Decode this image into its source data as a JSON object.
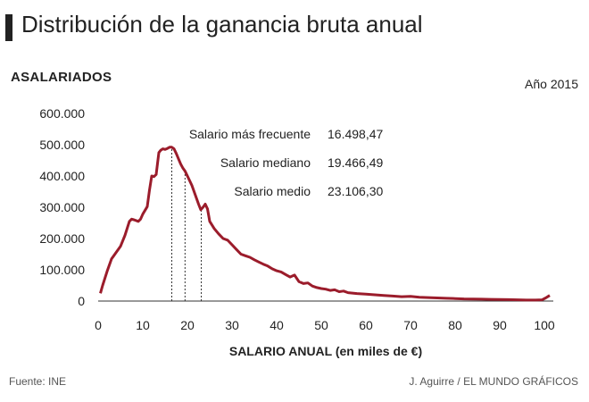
{
  "header": {
    "title": "Distribución de la ganancia bruta anual",
    "year": "Año 2015"
  },
  "footer": {
    "source": "Fuente: INE",
    "credit": "J. Aguirre / EL MUNDO GRÁFICOS"
  },
  "colors": {
    "line": "#9b1c2b",
    "axis": "#333333"
  },
  "chart_data": {
    "type": "line",
    "title": "Distribución de la ganancia bruta anual",
    "xlabel": "SALARIO ANUAL (en miles de €)",
    "ylabel": "ASALARIADOS",
    "xlim": [
      0,
      102
    ],
    "ylim": [
      0,
      600000
    ],
    "x_ticks": [
      0,
      10,
      20,
      30,
      40,
      50,
      60,
      70,
      80,
      90,
      100
    ],
    "y_ticks": [
      0,
      100000,
      200000,
      300000,
      400000,
      500000,
      600000
    ],
    "y_tick_labels": [
      "0",
      "100.000",
      "200.000",
      "300.000",
      "400.000",
      "500.000",
      "600.000"
    ],
    "grid": false,
    "series": [
      {
        "x": [
          0.5,
          1,
          2,
          3,
          4,
          5,
          6,
          7,
          7.5,
          8,
          9,
          9.5,
          10,
          11,
          11.5,
          12,
          12.5,
          13,
          13.3,
          13.6,
          14,
          14.5,
          15,
          15.5,
          16,
          16.5,
          17,
          17.5,
          18,
          18.5,
          19,
          19.5,
          20,
          21,
          22,
          22.5,
          23,
          23.5,
          24,
          24.5,
          25,
          26,
          27,
          28,
          29,
          30,
          31,
          32,
          33,
          34,
          35,
          36,
          37,
          38,
          39,
          40,
          41,
          42,
          43,
          44,
          45,
          46,
          47,
          48,
          49,
          50,
          51,
          52,
          53,
          54,
          55,
          56,
          58,
          60,
          62,
          64,
          66,
          68,
          70,
          72,
          74,
          76,
          78,
          80,
          82,
          84,
          86,
          88,
          90,
          92,
          94,
          96,
          98,
          99.5,
          100.3,
          101.2
        ],
        "y": [
          25000,
          50000,
          95000,
          135000,
          155000,
          175000,
          210000,
          255000,
          262000,
          260000,
          255000,
          262000,
          278000,
          302000,
          355000,
          400000,
          398000,
          405000,
          440000,
          475000,
          482000,
          487000,
          485000,
          488000,
          492000,
          492000,
          487000,
          472000,
          455000,
          438000,
          425000,
          415000,
          400000,
          370000,
          330000,
          310000,
          292000,
          300000,
          310000,
          295000,
          255000,
          232000,
          215000,
          200000,
          195000,
          180000,
          165000,
          150000,
          145000,
          140000,
          132000,
          125000,
          118000,
          112000,
          103000,
          97000,
          93000,
          85000,
          77000,
          83000,
          62000,
          56000,
          58000,
          48000,
          43000,
          40000,
          38000,
          34000,
          36000,
          30000,
          32000,
          27000,
          24000,
          22000,
          20000,
          18000,
          16000,
          14000,
          15000,
          12000,
          11000,
          10000,
          9000,
          8000,
          7000,
          6500,
          6000,
          5500,
          5000,
          4500,
          4000,
          3000,
          3000,
          4000,
          10000,
          18000
        ]
      }
    ],
    "annotations": [
      {
        "label": "Salario más frecuente",
        "value": "16.498,47",
        "x": 16.49847
      },
      {
        "label": "Salario mediano",
        "value": "19.466,49",
        "x": 19.46649
      },
      {
        "label": "Salario medio",
        "value": "23.106,30",
        "x": 23.1063
      }
    ]
  }
}
